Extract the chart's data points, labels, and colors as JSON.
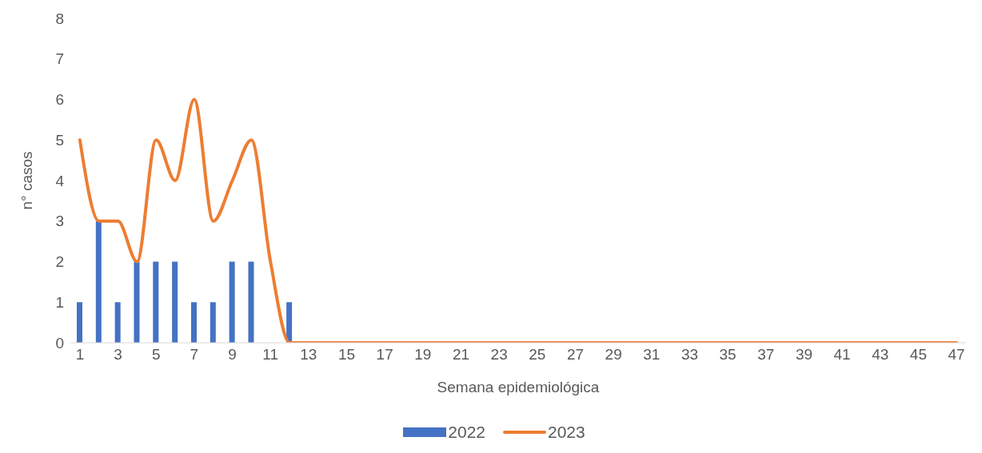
{
  "chart_data": {
    "type": "bar",
    "xlabel": "Semana epidemiológica",
    "ylabel": "n° casos",
    "x": [
      1,
      2,
      3,
      4,
      5,
      6,
      7,
      8,
      9,
      10,
      11,
      12,
      13,
      14,
      15,
      16,
      17,
      18,
      19,
      20,
      21,
      22,
      23,
      24,
      25,
      26,
      27,
      28,
      29,
      30,
      31,
      32,
      33,
      34,
      35,
      36,
      37,
      38,
      39,
      40,
      41,
      42,
      43,
      44,
      45,
      46,
      47
    ],
    "series": [
      {
        "name": "2022",
        "color": "#4472c4",
        "values": [
          1,
          3,
          1,
          2,
          2,
          2,
          1,
          1,
          2,
          2,
          0,
          1,
          0,
          0,
          0,
          0,
          0,
          0,
          0,
          0,
          0,
          0,
          0,
          0,
          0,
          0,
          0,
          0,
          0,
          0,
          0,
          0,
          0,
          0,
          0,
          0,
          0,
          0,
          0,
          0,
          0,
          0,
          0,
          0,
          0,
          0,
          0
        ]
      },
      {
        "name": "2023",
        "type": "line",
        "color": "#ed7d31",
        "values": [
          5,
          3,
          3,
          2,
          5,
          4,
          6,
          3,
          4,
          5,
          2,
          0,
          0,
          0,
          0,
          0,
          0,
          0,
          0,
          0,
          0,
          0,
          0,
          0,
          0,
          0,
          0,
          0,
          0,
          0,
          0,
          0,
          0,
          0,
          0,
          0,
          0,
          0,
          0,
          0,
          0,
          0,
          0,
          0,
          0,
          0,
          0
        ]
      }
    ],
    "xlim": [
      0.5,
      47.5
    ],
    "xticks": [
      1,
      3,
      5,
      7,
      9,
      11,
      13,
      15,
      17,
      19,
      21,
      23,
      25,
      27,
      29,
      31,
      33,
      35,
      37,
      39,
      41,
      43,
      45,
      47
    ],
    "ylim": [
      0,
      8
    ],
    "yticks": [
      0,
      1,
      2,
      3,
      4,
      5,
      6,
      7,
      8
    ],
    "legend": "bottom",
    "marker": "none"
  }
}
